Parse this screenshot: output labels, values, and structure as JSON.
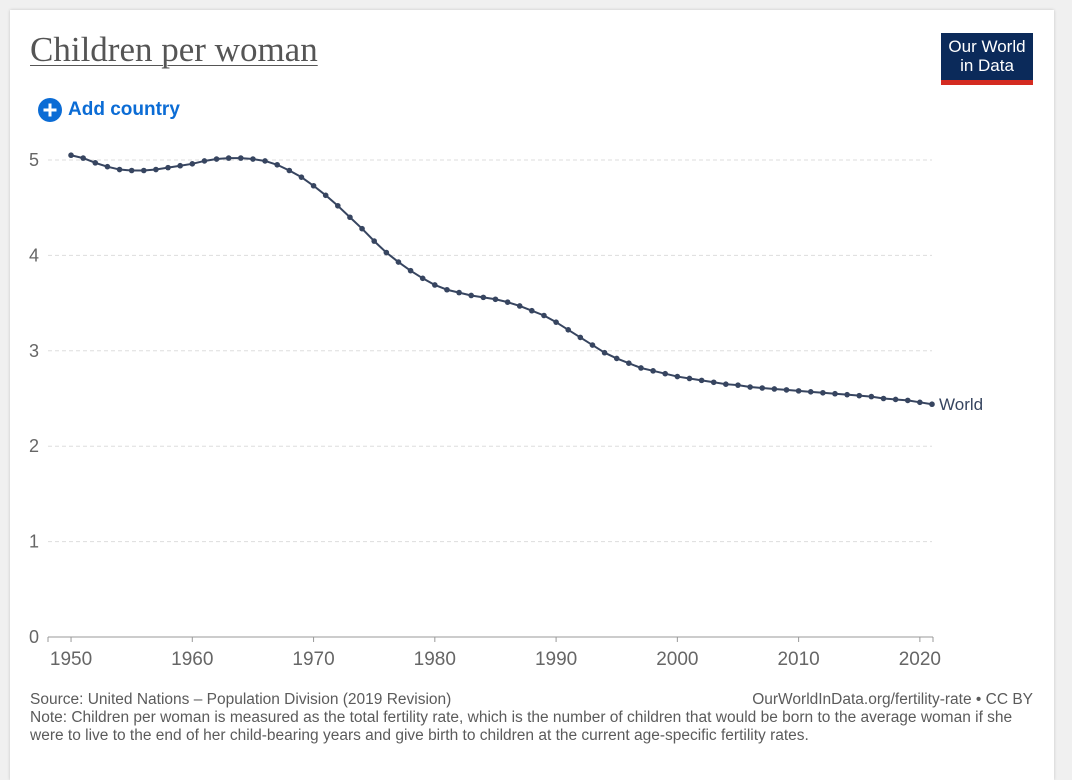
{
  "header": {
    "title": "Children per woman",
    "logo_line1": "Our World",
    "logo_line2": "in Data",
    "add_country_label": "Add country"
  },
  "colors": {
    "line": "#374560",
    "grid": "#dddddd",
    "axis_text": "#666666",
    "logo_bg": "#0b2a5a",
    "logo_bar": "#d42b21",
    "link": "#0b6cd5"
  },
  "chart_data": {
    "type": "line",
    "title": "Children per woman",
    "xlabel": "",
    "ylabel": "",
    "xlim": [
      1950,
      2020
    ],
    "ylim": [
      0,
      5
    ],
    "x_ticks": [
      "1950",
      "1960",
      "1970",
      "1980",
      "1990",
      "2000",
      "2010",
      "2020"
    ],
    "y_ticks": [
      "0",
      "1",
      "2",
      "3",
      "4",
      "5"
    ],
    "grid": true,
    "series": [
      {
        "name": "World",
        "x": [
          1950,
          1951,
          1952,
          1953,
          1954,
          1955,
          1956,
          1957,
          1958,
          1959,
          1960,
          1961,
          1962,
          1963,
          1964,
          1965,
          1966,
          1967,
          1968,
          1969,
          1970,
          1971,
          1972,
          1973,
          1974,
          1975,
          1976,
          1977,
          1978,
          1979,
          1980,
          1981,
          1982,
          1983,
          1984,
          1985,
          1986,
          1987,
          1988,
          1989,
          1990,
          1991,
          1992,
          1993,
          1994,
          1995,
          1996,
          1997,
          1998,
          1999,
          2000,
          2001,
          2002,
          2003,
          2004,
          2005,
          2006,
          2007,
          2008,
          2009,
          2010,
          2011,
          2012,
          2013,
          2014,
          2015,
          2016,
          2017,
          2018,
          2019,
          2020,
          2021
        ],
        "y": [
          5.05,
          5.02,
          4.97,
          4.93,
          4.9,
          4.89,
          4.89,
          4.9,
          4.92,
          4.94,
          4.96,
          4.99,
          5.01,
          5.02,
          5.02,
          5.01,
          4.99,
          4.95,
          4.89,
          4.82,
          4.73,
          4.63,
          4.52,
          4.4,
          4.28,
          4.15,
          4.03,
          3.93,
          3.84,
          3.76,
          3.69,
          3.64,
          3.61,
          3.58,
          3.56,
          3.54,
          3.51,
          3.47,
          3.42,
          3.37,
          3.3,
          3.22,
          3.14,
          3.06,
          2.98,
          2.92,
          2.87,
          2.82,
          2.79,
          2.76,
          2.73,
          2.71,
          2.69,
          2.67,
          2.65,
          2.64,
          2.62,
          2.61,
          2.6,
          2.59,
          2.58,
          2.57,
          2.56,
          2.55,
          2.54,
          2.53,
          2.52,
          2.5,
          2.49,
          2.48,
          2.46,
          2.44
        ]
      }
    ]
  },
  "footer": {
    "source": "Source: United Nations – Population Division (2019 Revision)",
    "credit": "OurWorldInData.org/fertility-rate • CC BY",
    "note": "Note: Children per woman is measured as the total fertility rate, which is the number of children that would be born to the average woman if she were to live to the end of her child-bearing years and give birth to children at the current age-specific fertility rates."
  }
}
